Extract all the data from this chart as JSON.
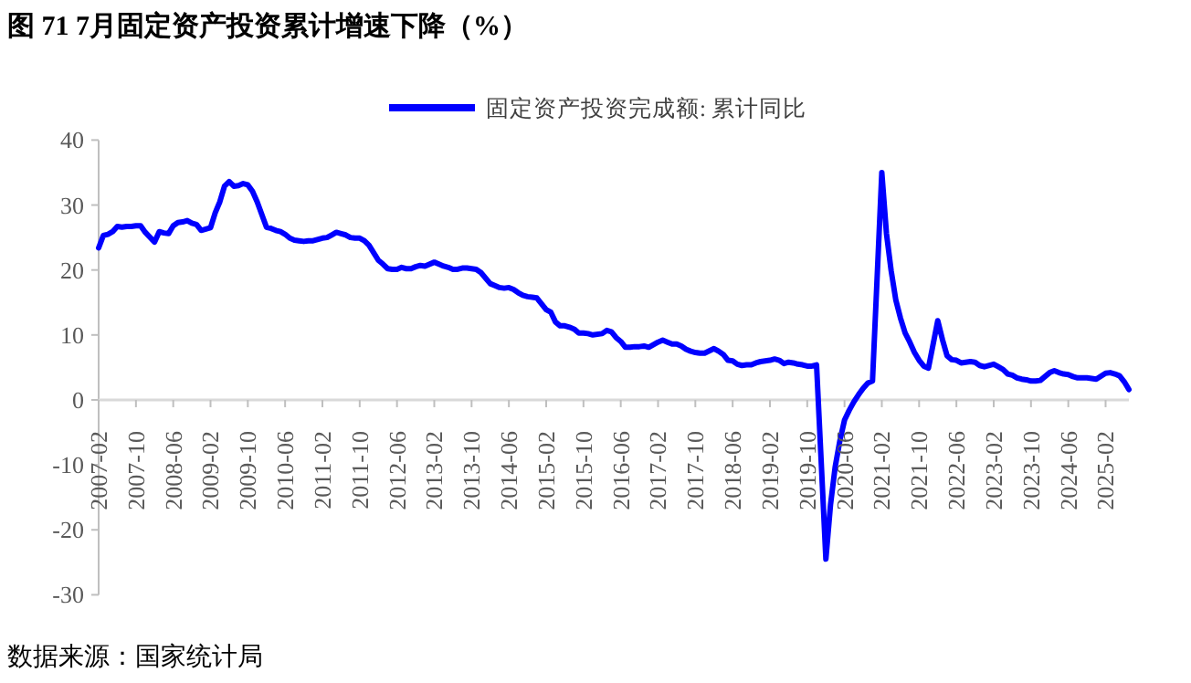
{
  "chart_data": {
    "type": "line",
    "title": "图 71 7月固定资产投资累计增速下降（%）",
    "annotations": [
      "数据来源：国家统计局"
    ],
    "xlim": [
      "2007-02",
      "2025-07"
    ],
    "xticks": [
      "2007-02",
      "2007-10",
      "2008-06",
      "2009-02",
      "2009-10",
      "2010-06",
      "2011-02",
      "2011-10",
      "2012-06",
      "2013-02",
      "2013-10",
      "2014-06",
      "2015-02",
      "2015-10",
      "2016-06",
      "2017-02",
      "2017-10",
      "2018-06",
      "2019-02",
      "2019-10",
      "2020-06",
      "2021-02",
      "2021-10",
      "2022-06",
      "2023-02",
      "2023-10",
      "2024-06",
      "2025-02"
    ],
    "ylim": [
      -30,
      40
    ],
    "yticks": [
      -30,
      -20,
      -10,
      0,
      10,
      20,
      30,
      40
    ],
    "legend": "top",
    "x": [
      "2007-02",
      "2007-03",
      "2007-04",
      "2007-05",
      "2007-06",
      "2007-07",
      "2007-08",
      "2007-09",
      "2007-10",
      "2007-11",
      "2007-12",
      "2008-02",
      "2008-03",
      "2008-04",
      "2008-05",
      "2008-06",
      "2008-07",
      "2008-08",
      "2008-09",
      "2008-10",
      "2008-11",
      "2008-12",
      "2009-02",
      "2009-03",
      "2009-04",
      "2009-05",
      "2009-06",
      "2009-07",
      "2009-08",
      "2009-09",
      "2009-10",
      "2009-11",
      "2009-12",
      "2010-02",
      "2010-03",
      "2010-04",
      "2010-05",
      "2010-06",
      "2010-07",
      "2010-08",
      "2010-09",
      "2010-10",
      "2010-11",
      "2010-12",
      "2011-02",
      "2011-03",
      "2011-04",
      "2011-05",
      "2011-06",
      "2011-07",
      "2011-08",
      "2011-09",
      "2011-10",
      "2011-11",
      "2011-12",
      "2012-02",
      "2012-03",
      "2012-04",
      "2012-05",
      "2012-06",
      "2012-07",
      "2012-08",
      "2012-09",
      "2012-10",
      "2012-11",
      "2012-12",
      "2013-02",
      "2013-03",
      "2013-04",
      "2013-05",
      "2013-06",
      "2013-07",
      "2013-08",
      "2013-09",
      "2013-10",
      "2013-11",
      "2013-12",
      "2014-02",
      "2014-03",
      "2014-04",
      "2014-05",
      "2014-06",
      "2014-07",
      "2014-08",
      "2014-09",
      "2014-10",
      "2014-11",
      "2014-12",
      "2015-02",
      "2015-03",
      "2015-04",
      "2015-05",
      "2015-06",
      "2015-07",
      "2015-08",
      "2015-09",
      "2015-10",
      "2015-11",
      "2015-12",
      "2016-02",
      "2016-03",
      "2016-04",
      "2016-05",
      "2016-06",
      "2016-07",
      "2016-08",
      "2016-09",
      "2016-10",
      "2016-11",
      "2016-12",
      "2017-02",
      "2017-03",
      "2017-04",
      "2017-05",
      "2017-06",
      "2017-07",
      "2017-08",
      "2017-09",
      "2017-10",
      "2017-11",
      "2017-12",
      "2018-02",
      "2018-03",
      "2018-04",
      "2018-05",
      "2018-06",
      "2018-07",
      "2018-08",
      "2018-09",
      "2018-10",
      "2018-11",
      "2018-12",
      "2019-02",
      "2019-03",
      "2019-04",
      "2019-05",
      "2019-06",
      "2019-07",
      "2019-08",
      "2019-09",
      "2019-10",
      "2019-11",
      "2019-12",
      "2020-02",
      "2020-03",
      "2020-04",
      "2020-05",
      "2020-06",
      "2020-07",
      "2020-08",
      "2020-09",
      "2020-10",
      "2020-11",
      "2020-12",
      "2021-02",
      "2021-03",
      "2021-04",
      "2021-05",
      "2021-06",
      "2021-07",
      "2021-08",
      "2021-09",
      "2021-10",
      "2021-11",
      "2021-12",
      "2022-02",
      "2022-03",
      "2022-04",
      "2022-05",
      "2022-06",
      "2022-07",
      "2022-08",
      "2022-09",
      "2022-10",
      "2022-11",
      "2022-12",
      "2023-02",
      "2023-03",
      "2023-04",
      "2023-05",
      "2023-06",
      "2023-07",
      "2023-08",
      "2023-09",
      "2023-10",
      "2023-11",
      "2023-12",
      "2024-02",
      "2024-03",
      "2024-04",
      "2024-05",
      "2024-06",
      "2024-07",
      "2024-08",
      "2024-09",
      "2024-10",
      "2024-11",
      "2024-12",
      "2025-02",
      "2025-03",
      "2025-04",
      "2025-05",
      "2025-06",
      "2025-07"
    ],
    "series": [
      {
        "name": "固定资产投资完成额: 累计同比",
        "color": "#0000ff",
        "values": [
          23.4,
          25.3,
          25.5,
          25.9,
          26.7,
          26.6,
          26.7,
          26.7,
          26.8,
          26.8,
          25.8,
          24.3,
          25.9,
          25.7,
          25.6,
          26.8,
          27.3,
          27.4,
          27.6,
          27.2,
          27.0,
          26.1,
          26.5,
          28.8,
          30.5,
          32.9,
          33.6,
          32.9,
          33.0,
          33.3,
          33.1,
          32.1,
          30.5,
          26.6,
          26.4,
          26.1,
          25.9,
          25.5,
          24.9,
          24.6,
          24.5,
          24.4,
          24.5,
          24.5,
          24.9,
          25.0,
          25.4,
          25.8,
          25.6,
          25.4,
          25.0,
          24.9,
          24.9,
          24.5,
          23.8,
          21.5,
          20.9,
          20.2,
          20.1,
          20.1,
          20.4,
          20.2,
          20.2,
          20.5,
          20.7,
          20.6,
          21.2,
          20.9,
          20.6,
          20.4,
          20.1,
          20.1,
          20.3,
          20.3,
          20.2,
          20.1,
          19.6,
          17.9,
          17.6,
          17.3,
          17.2,
          17.3,
          17.0,
          16.5,
          16.1,
          15.9,
          15.8,
          15.7,
          13.9,
          13.5,
          12.0,
          11.4,
          11.4,
          11.2,
          10.9,
          10.3,
          10.3,
          10.2,
          10.0,
          10.2,
          10.7,
          10.5,
          9.6,
          9.0,
          8.1,
          8.1,
          8.2,
          8.2,
          8.3,
          8.1,
          8.9,
          9.2,
          8.9,
          8.6,
          8.6,
          8.3,
          7.8,
          7.5,
          7.3,
          7.2,
          7.2,
          7.9,
          7.5,
          7.0,
          6.1,
          6.0,
          5.5,
          5.3,
          5.4,
          5.4,
          5.7,
          5.9,
          6.1,
          6.3,
          6.1,
          5.6,
          5.8,
          5.7,
          5.5,
          5.4,
          5.2,
          5.2,
          5.4,
          -24.5,
          -16.1,
          -10.3,
          -6.3,
          -3.1,
          -1.6,
          -0.3,
          0.8,
          1.8,
          2.6,
          2.9,
          35.0,
          25.6,
          19.9,
          15.4,
          12.6,
          10.3,
          8.9,
          7.3,
          6.1,
          5.2,
          4.9,
          12.2,
          9.3,
          6.8,
          6.2,
          6.1,
          5.7,
          5.8,
          5.9,
          5.8,
          5.3,
          5.1,
          5.5,
          5.1,
          4.7,
          4.0,
          3.8,
          3.4,
          3.2,
          3.1,
          2.9,
          2.9,
          3.0,
          4.2,
          4.5,
          4.2,
          4.0,
          3.9,
          3.6,
          3.4,
          3.4,
          3.4,
          3.3,
          3.2,
          4.1,
          4.2,
          4.0,
          3.7,
          2.8,
          1.6
        ]
      }
    ]
  }
}
